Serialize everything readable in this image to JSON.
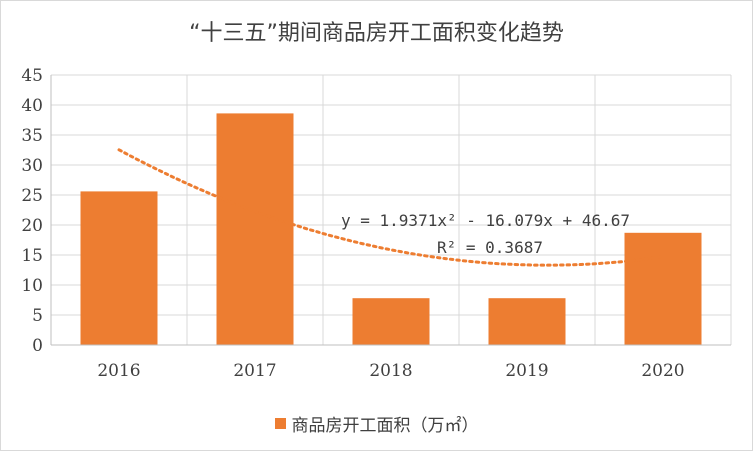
{
  "chart_data": {
    "type": "bar",
    "title": "“十三五”期间商品房开工面积变化趋势",
    "categories": [
      "2016",
      "2017",
      "2018",
      "2019",
      "2020"
    ],
    "series": [
      {
        "name": "商品房开工面积（万㎡）",
        "values": [
          25.6,
          38.6,
          7.8,
          7.8,
          18.7
        ],
        "color": "#ed7d31"
      }
    ],
    "ylim": [
      0,
      45
    ],
    "yticks": [
      0,
      5,
      10,
      15,
      20,
      25,
      30,
      35,
      40,
      45
    ],
    "grid": true,
    "legend_position": "bottom",
    "trendline": {
      "type": "polynomial",
      "order": 2,
      "coefficients": [
        1.9371,
        -16.079,
        46.67
      ],
      "equation_text": "y = 1.9371x² - 16.079x + 46.67",
      "r2_text": "R² = 0.3687",
      "color": "#ed7d31",
      "style": "dotted"
    }
  }
}
